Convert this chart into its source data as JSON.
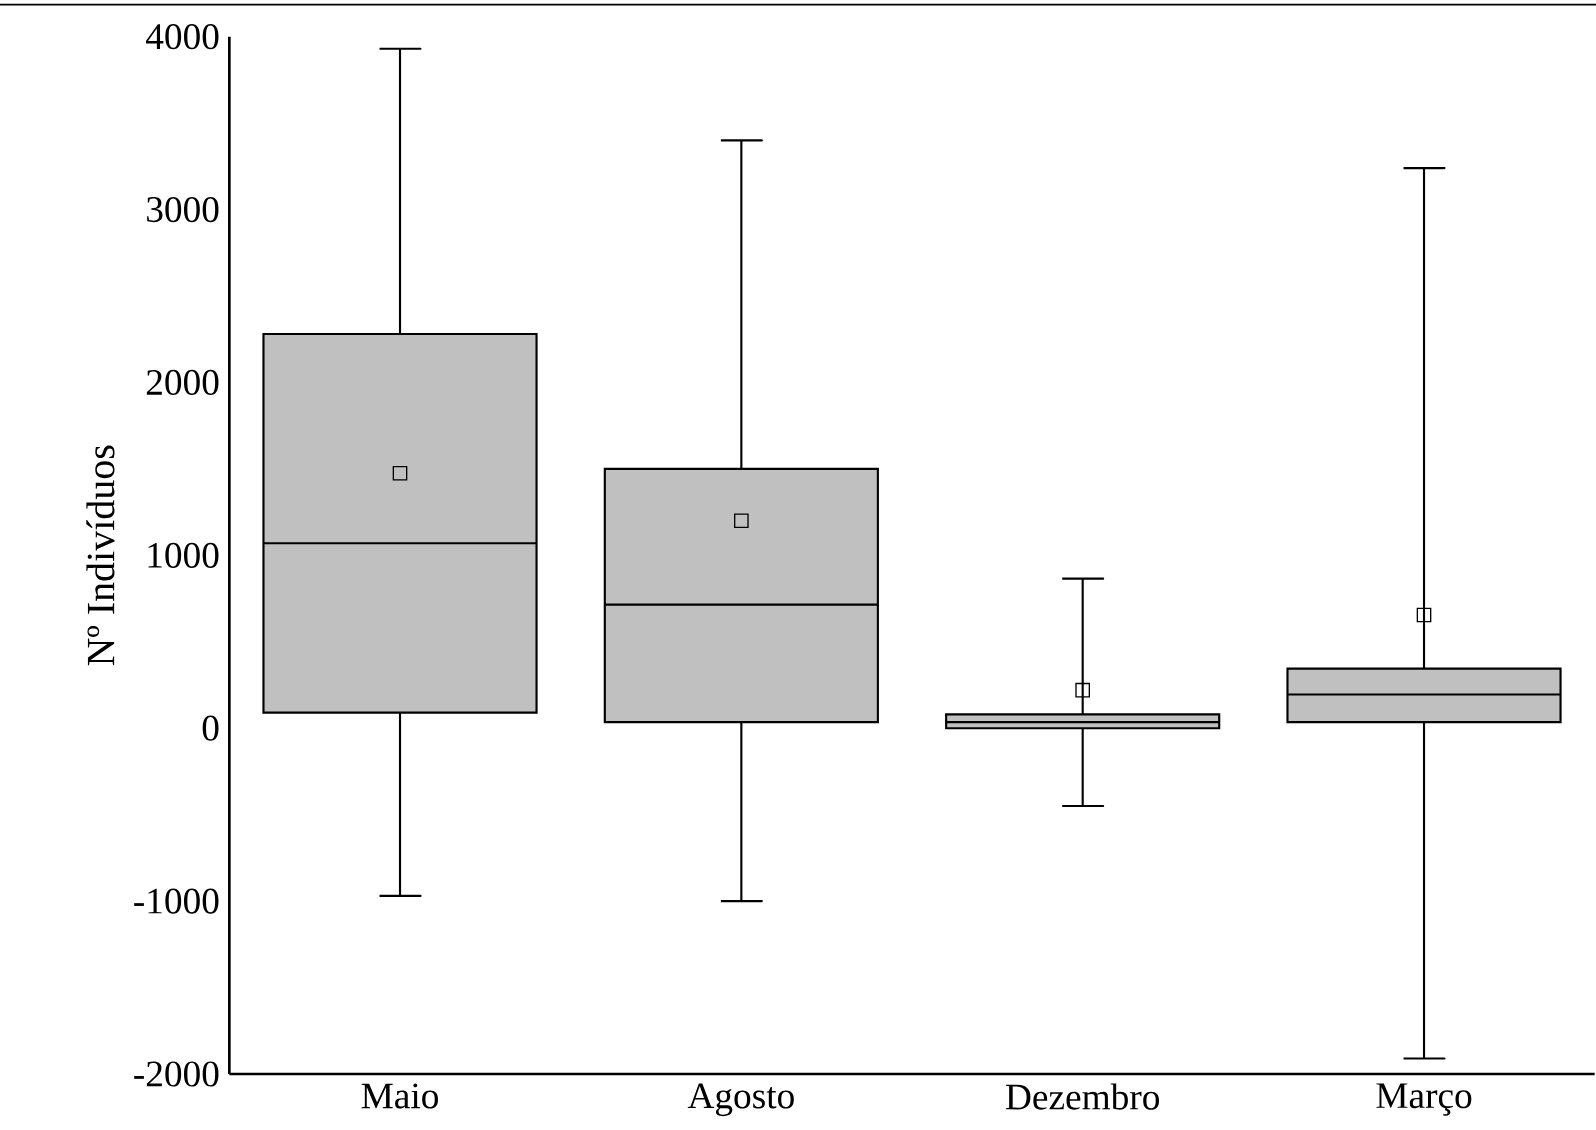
{
  "chart_data": {
    "type": "box",
    "ylabel": "Nº Indivíduos",
    "categories": [
      "Maio",
      "Agosto",
      "Dezembro",
      "Março"
    ],
    "boxes": [
      {
        "low": -970,
        "q1": 90,
        "median": 1070,
        "q3": 2280,
        "high": 3930,
        "mean": 1475
      },
      {
        "low": -1000,
        "q1": 35,
        "median": 715,
        "q3": 1500,
        "high": 3400,
        "mean": 1200
      },
      {
        "low": -450,
        "q1": 0,
        "median": 35,
        "q3": 80,
        "high": 865,
        "mean": 220
      },
      {
        "low": -1910,
        "q1": 35,
        "median": 195,
        "q3": 345,
        "high": 3240,
        "mean": 655
      }
    ],
    "color": "#c0c0c0",
    "ylim": [
      -2000,
      4000
    ],
    "yticks": [
      -2000,
      -1000,
      0,
      1000,
      2000,
      3000,
      4000
    ],
    "marker": "square"
  }
}
